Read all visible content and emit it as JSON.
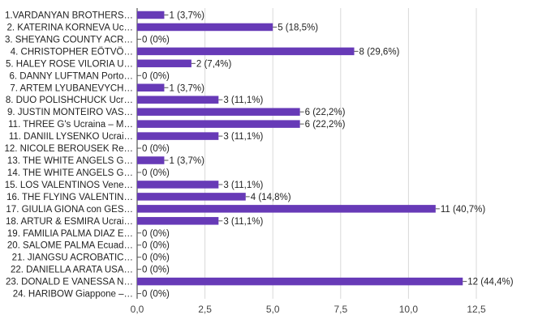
{
  "chart_data": {
    "type": "bar",
    "orientation": "horizontal",
    "categories": [
      "1.VARDANYAN BROTHERS…",
      "2. KATERINA KORNEVA Uc…",
      "3. SHEYANG COUNTY ACR…",
      "4. CHRISTOPHER EÖTVÖ…",
      "5. HALEY ROSE VILORIA U…",
      "6. DANNY LUFTMAN Porto…",
      "7. ARTEM LYUBANEVYCH…",
      "8. DUO POLISHCHUCK Ucr…",
      "9. JUSTIN MONTEIRO VAS…",
      "11. THREE G's Ucraina – M…",
      "11. DANIIL LYSENKO Ucrai…",
      "12. NICOLE BEROUSEK Re…",
      "13. THE WHITE ANGELS G…",
      "14. THE WHITE ANGELS G…",
      "15. LOS VALENTINOS Vene…",
      "16. THE FLYING VALENTIN…",
      "17. GIULIA GIONA con GES…",
      "18. ARTUR & ESMIRA Ucrai…",
      "19. FAMILIA PALMA DIAZ E…",
      "20. SALOME PALMA Ecuad…",
      "21. JIANGSU ACROBATIC…",
      "22. DANIELLA ARATA USA…",
      "23. DONALD E VANESSA N…",
      "24. HARIBOW Giappone –…"
    ],
    "values": [
      1,
      5,
      0,
      8,
      2,
      0,
      1,
      3,
      6,
      6,
      3,
      0,
      1,
      0,
      3,
      4,
      11,
      3,
      0,
      0,
      0,
      0,
      12,
      0
    ],
    "data_labels": [
      "1 (3,7%)",
      "5 (18,5%)",
      "0 (0%)",
      "8 (29,6%)",
      "2 (7,4%)",
      "0 (0%)",
      "1 (3,7%)",
      "3 (11,1%)",
      "6 (22,2%)",
      "6 (22,2%)",
      "3 (11,1%)",
      "0 (0%)",
      "1 (3,7%)",
      "0 (0%)",
      "3 (11,1%)",
      "4 (14,8%)",
      "11 (40,7%)",
      "3 (11,1%)",
      "0 (0%)",
      "0 (0%)",
      "0 (0%)",
      "0 (0%)",
      "12 (44,4%)",
      "0 (0%)"
    ],
    "x_ticks": [
      0,
      2.5,
      5,
      7.5,
      10,
      12.5
    ],
    "x_tick_labels": [
      "0,0",
      "2,5",
      "5,0",
      "7,5",
      "10,0",
      "12,5"
    ],
    "xlim": [
      0,
      12.5
    ],
    "grid": "vertical",
    "bar_color": "#673ab7",
    "title": "",
    "xlabel": "",
    "ylabel": ""
  }
}
